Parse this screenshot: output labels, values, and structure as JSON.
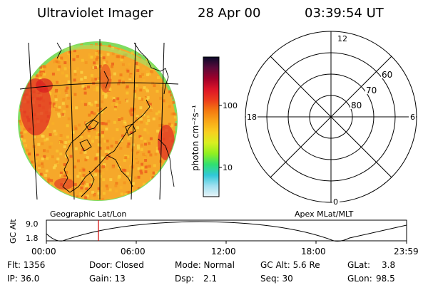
{
  "header": {
    "instrument": "Ultraviolet Imager",
    "date": "28 Apr 00",
    "time": "03:39:54 UT"
  },
  "colorbar": {
    "unit_label": "photon cm⁻²s⁻¹",
    "ticks": [
      "100",
      "10"
    ],
    "colors": [
      "#0a0a2a",
      "#5a0a3a",
      "#a0002a",
      "#dc1428",
      "#ec3c1c",
      "#f47a10",
      "#f8a818",
      "#f8d020",
      "#d8f020",
      "#90f020",
      "#30e070",
      "#30c8d8",
      "#a0e0f0",
      "#e8f4f8"
    ]
  },
  "left_panel": {
    "caption": "Geographic Lat/Lon"
  },
  "right_panel": {
    "caption": "Apex MLat/MLT",
    "mlt_labels": {
      "top": "12",
      "right": "6",
      "bottom": "0",
      "left": "18"
    },
    "lat_labels": [
      "60",
      "70",
      "80"
    ]
  },
  "altitude_plot": {
    "ylabel": "GC Alt",
    "yticks": [
      "9.0",
      "1.8"
    ],
    "xticks": [
      "00:00",
      "06:00",
      "12:00",
      "18:00",
      "23:59"
    ],
    "current_marker_color": "#d00000"
  },
  "status": {
    "flt": "Flt: 1356",
    "door": "Door: Closed",
    "mode": "Mode: Normal",
    "gc_alt": "GC Alt: 5.6 Re",
    "glat_label": "GLat:",
    "glat_value": "3.8",
    "ip": "IP: 36.0",
    "gain": "Gain: 13",
    "dsp_label": "Dsp:",
    "dsp_value": "2.1",
    "seq": "Seq: 30",
    "glon_label": "GLon:",
    "glon_value": "98.5"
  }
}
